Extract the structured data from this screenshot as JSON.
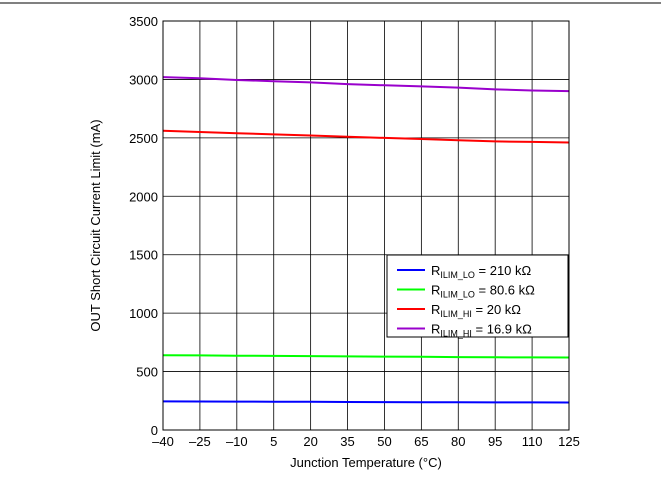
{
  "chart_data": {
    "type": "line",
    "title": "",
    "xlabel": "Junction Temperature (°C)",
    "ylabel": "OUT Short Circuit Current Limit (mA)",
    "xlim": [
      -40,
      125
    ],
    "ylim": [
      0,
      3500
    ],
    "x_ticks": [
      -40,
      -25,
      -10,
      5,
      20,
      35,
      50,
      65,
      80,
      95,
      110,
      125
    ],
    "x_tick_labels": [
      "–40",
      "–25",
      "–10",
      "5",
      "20",
      "35",
      "50",
      "65",
      "80",
      "95",
      "110",
      "125"
    ],
    "y_ticks": [
      0,
      500,
      1000,
      1500,
      2000,
      2500,
      3000,
      3500
    ],
    "y_tick_labels": [
      "0",
      "500",
      "1000",
      "1500",
      "2000",
      "2500",
      "3000",
      "3500"
    ],
    "grid": true,
    "legend_position": "right",
    "series": [
      {
        "name_main": "R",
        "name_sub": "ILIM_LO",
        "name_rest": " = 210 kΩ",
        "color": "#0000ff",
        "x": [
          -40,
          -25,
          -10,
          5,
          20,
          35,
          50,
          65,
          80,
          95,
          110,
          125
        ],
        "y": [
          245,
          244,
          243,
          242,
          241,
          240,
          239,
          238,
          237,
          236,
          236,
          235
        ]
      },
      {
        "name_main": "R",
        "name_sub": "ILIM_LO",
        "name_rest": " = 80.6 kΩ",
        "color": "#00ff00",
        "x": [
          -40,
          -25,
          -10,
          5,
          20,
          35,
          50,
          65,
          80,
          95,
          110,
          125
        ],
        "y": [
          640,
          638,
          636,
          634,
          632,
          630,
          628,
          626,
          624,
          622,
          621,
          620
        ]
      },
      {
        "name_main": "R",
        "name_sub": "ILIM_HI",
        "name_rest": " = 20 kΩ",
        "color": "#ff0000",
        "x": [
          -40,
          -25,
          -10,
          5,
          20,
          35,
          50,
          65,
          80,
          95,
          110,
          125
        ],
        "y": [
          2560,
          2550,
          2540,
          2530,
          2520,
          2510,
          2500,
          2490,
          2480,
          2470,
          2465,
          2460
        ]
      },
      {
        "name_main": "R",
        "name_sub": "ILIM_HI",
        "name_rest": " = 16.9 kΩ",
        "color": "#9900cc",
        "x": [
          -40,
          -25,
          -10,
          5,
          20,
          35,
          50,
          65,
          80,
          95,
          110,
          125
        ],
        "y": [
          3020,
          3010,
          2995,
          2985,
          2975,
          2960,
          2950,
          2940,
          2930,
          2915,
          2905,
          2900
        ]
      }
    ]
  }
}
